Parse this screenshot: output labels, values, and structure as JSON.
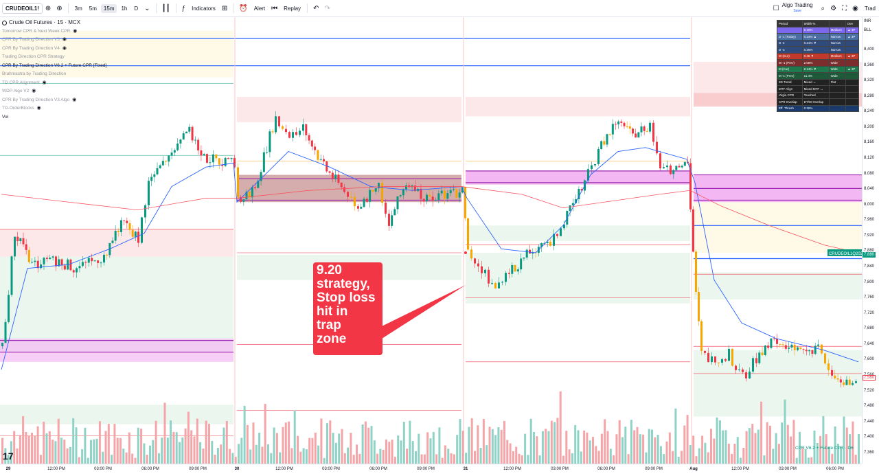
{
  "toolbar": {
    "symbol": "CRUDEOIL1!",
    "intervals": [
      "3m",
      "5m",
      "15m",
      "1h",
      "D"
    ],
    "active_interval": "15m",
    "indicators_label": "Indicators",
    "alert_label": "Alert",
    "replay_label": "Replay",
    "algo_label": "Algo Trading",
    "save_label": "Save",
    "trade_label": "Trad"
  },
  "legend": {
    "title": "Crude Oil Futures · 15 · MCX",
    "items": [
      "Tomorrow CPR & Next Week CPR",
      "CPR By Trading Direction V3",
      "CPR By Trading Direction V4",
      "Trading Direction CPR Strategy",
      "CPR By Trading Direction V6.2 + Future CPR [Fixed]",
      "Brahmastra by Trading Direction",
      "TD CPR Alignment",
      "WDP Algo V2",
      "CPR By Trading Direction V3 Algo",
      "TD-OrderBlocks",
      "Vol"
    ]
  },
  "annotation": {
    "text": "9.20\nstrategy,\nStop loss\nhit in\ntrap\nzone"
  },
  "price_axis": {
    "currency": "INR",
    "unit": "BLL",
    "ticks": [
      "8,400",
      "8,360",
      "8,320",
      "8,280",
      "8,240",
      "8,200",
      "8,160",
      "8,120",
      "8,080",
      "8,040",
      "8,000",
      "7,960",
      "7,920",
      "7,880",
      "7,840",
      "7,800",
      "7,760",
      "7,720",
      "7,680",
      "7,640",
      "7,600",
      "7,560",
      "7,520",
      "7,480",
      "7,440",
      "7,400",
      "7,360"
    ],
    "symbol_tag": "CRUDEOIL1Q2026",
    "symbol_price": "7,880",
    "last_price": "7,560"
  },
  "time_axis": {
    "ticks": [
      "29",
      "12:00 PM",
      "03:00 PM",
      "06:00 PM",
      "09:00 PM",
      "30",
      "12:00 PM",
      "03:00 PM",
      "06:00 PM",
      "09:00 PM",
      "31",
      "12:00 PM",
      "03:00 PM",
      "06:00 PM",
      "09:00 PM",
      "Aug",
      "12:00 PM",
      "03:00 PM",
      "06:00 PM"
    ]
  },
  "cpr_table": {
    "header": [
      "Period",
      "Width %",
      "",
      "Dev"
    ],
    "rows": [
      {
        "label": "",
        "value": "0.40%",
        "width": "Medium",
        "trend": "▲ 3P",
        "bg": "#7b68ee"
      },
      {
        "label": "D -1 (Today)",
        "value": "0.23% ▲",
        "width": "Narrow",
        "trend": "▲ 3P",
        "bg": "#4a6fa5"
      },
      {
        "label": "D -2",
        "value": "0.21% ▼",
        "width": "Narrow",
        "trend": "",
        "bg": "#2f4b7c"
      },
      {
        "label": "D -3",
        "value": "0.35%",
        "width": "Narrow",
        "trend": "",
        "bg": "#2f4b7c"
      },
      {
        "label": "W (Cur)",
        "value": "0.46 ▼",
        "width": "Medium",
        "trend": "▲ 3P",
        "bg": "#c0392b"
      },
      {
        "label": "W -1 (Prev)",
        "value": "2.08%",
        "width": "Wide",
        "trend": "",
        "bg": "#7b2d2d"
      },
      {
        "label": "M (Cur)",
        "value": "2.14% ▼",
        "width": "Wide",
        "trend": "▲ 3P",
        "bg": "#1e7a4c"
      },
      {
        "label": "M -1 (Prev)",
        "value": "11.4%",
        "width": "Wide",
        "trend": "",
        "bg": "#1e5a3a"
      },
      {
        "label": "3D Trend",
        "value": "Mixed ↔",
        "width": "Flat",
        "trend": "",
        "bg": "#222"
      },
      {
        "label": "MTF Align",
        "value": "Mixed MTF ↔",
        "width": "",
        "trend": "",
        "bg": "#222"
      },
      {
        "label": "Virgin CPR",
        "value": "Touched",
        "width": "",
        "trend": "",
        "bg": "#222"
      },
      {
        "label": "CPR Overlap",
        "value": "DT/W Overlap",
        "width": "",
        "trend": "",
        "bg": "#222"
      },
      {
        "label": "Eff. Thresh",
        "value": "0.25%",
        "width": "",
        "trend": "",
        "bg": "#1a3a6b"
      }
    ]
  },
  "bottom_legend": "CPR V6.2 + Future CPR · D6",
  "chart_data": {
    "type": "candlestick",
    "symbol": "CRUDEOIL1!",
    "ylim": [
      7340,
      8440
    ],
    "candles_note": "OHLC series visualized across 4 sessions (29, 30, 31, Aug)",
    "colors": {
      "up": "#089981",
      "down": "#f23645",
      "ema": "#2962ff",
      "sma": "#f7525f"
    }
  }
}
